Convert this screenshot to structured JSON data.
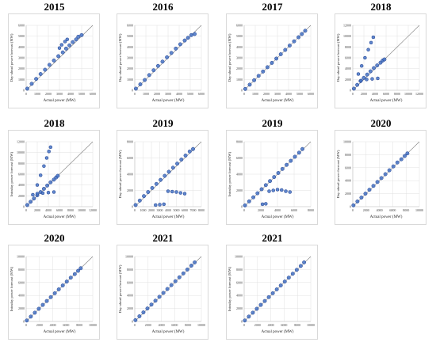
{
  "colors": {
    "point_fill": "#4472c4",
    "point_stroke": "#1f3f8f",
    "diagonal": "#7f7f7f",
    "grid": "#e0e0e0"
  },
  "chart_data": [
    {
      "type": "scatter",
      "title": "2015",
      "xlabel": "Actual power (MW)",
      "ylabel": "Day-ahead power forecast (MW)",
      "xlim": [
        0,
        6000
      ],
      "ylim": [
        0,
        6000
      ],
      "xticks": [
        "0",
        "1000",
        "2000",
        "3000",
        "4000",
        "5000",
        "6000"
      ],
      "yticks": [
        "0",
        "1000",
        "2000",
        "3000",
        "4000",
        "5000",
        "6000"
      ],
      "x": [
        100,
        500,
        900,
        1300,
        1700,
        2100,
        2500,
        2900,
        3300,
        3600,
        3900,
        4200,
        4500,
        4700,
        5000
      ],
      "y": [
        150,
        600,
        1050,
        1500,
        1900,
        2350,
        2750,
        3150,
        3500,
        3850,
        4150,
        4450,
        4700,
        4950,
        5100
      ],
      "outliers": {
        "x": [
          3000,
          3200,
          3500,
          3700
        ],
        "y": [
          3900,
          4200,
          4500,
          4700
        ]
      }
    },
    {
      "type": "scatter",
      "title": "2016",
      "xlabel": "Actual power (MW)",
      "ylabel": "Day-ahead power forecast (MW)",
      "xlim": [
        0,
        6000
      ],
      "ylim": [
        0,
        6000
      ],
      "xticks": [
        "0",
        "1000",
        "2000",
        "3000",
        "4000",
        "5000",
        "6000"
      ],
      "yticks": [
        "0",
        "1000",
        "2000",
        "3000",
        "4000",
        "5000",
        "6000"
      ],
      "x": [
        100,
        500,
        900,
        1300,
        1700,
        2100,
        2500,
        2900,
        3300,
        3700,
        4100,
        4500,
        4800,
        5100,
        5400
      ],
      "y": [
        150,
        550,
        950,
        1400,
        1850,
        2250,
        2650,
        3050,
        3450,
        3850,
        4250,
        4600,
        4850,
        5100,
        5200
      ],
      "outliers": {
        "x": [],
        "y": []
      }
    },
    {
      "type": "scatter",
      "title": "2017",
      "xlabel": "Actual power (MW)",
      "ylabel": "Day-ahead power forecast (MW)",
      "xlim": [
        0,
        6000
      ],
      "ylim": [
        0,
        6000
      ],
      "xticks": [
        "0",
        "1000",
        "2000",
        "3000",
        "4000",
        "5000",
        "6000"
      ],
      "yticks": [
        "0",
        "1000",
        "2000",
        "3000",
        "4000",
        "5000",
        "6000"
      ],
      "x": [
        100,
        500,
        900,
        1300,
        1700,
        2100,
        2500,
        2900,
        3300,
        3700,
        4100,
        4500,
        4900,
        5200,
        5500
      ],
      "y": [
        120,
        520,
        930,
        1330,
        1730,
        2130,
        2530,
        2930,
        3330,
        3730,
        4130,
        4520,
        4900,
        5200,
        5500
      ],
      "outliers": {
        "x": [],
        "y": []
      }
    },
    {
      "type": "scatter",
      "title": "2018",
      "xlabel": "Actual power (MW)",
      "ylabel": "Day-ahead power forecast (MW)",
      "xlim": [
        0,
        12000
      ],
      "ylim": [
        0,
        12000
      ],
      "xticks": [
        "0",
        "2000",
        "4000",
        "6000",
        "8000",
        "10000",
        "12000"
      ],
      "yticks": [
        "0",
        "2000",
        "4000",
        "6000",
        "8000",
        "10000",
        "12000"
      ],
      "x": [
        200,
        800,
        1400,
        2000,
        2600,
        3200,
        3800,
        4400,
        5000,
        5400,
        5700
      ],
      "y": [
        300,
        1000,
        1700,
        2300,
        2900,
        3500,
        4100,
        4600,
        5100,
        5500,
        5700
      ],
      "outliers": {
        "x": [
          1000,
          1600,
          2200,
          2800,
          3300,
          3700,
          1500,
          2500,
          3500,
          4500
        ],
        "y": [
          3000,
          4500,
          6000,
          7500,
          8800,
          9800,
          1800,
          2000,
          2100,
          2200
        ]
      }
    },
    {
      "type": "scatter",
      "title": "2018",
      "xlabel": "Actual power (MW)",
      "ylabel": "Intraday power forecast (MW)",
      "xlim": [
        0,
        12000
      ],
      "ylim": [
        0,
        12000
      ],
      "xticks": [
        "0",
        "2000",
        "4000",
        "6000",
        "8000",
        "10000",
        "12000"
      ],
      "yticks": [
        "0",
        "2000",
        "4000",
        "6000",
        "8000",
        "10000",
        "12000"
      ],
      "x": [
        200,
        800,
        1400,
        2000,
        2600,
        3200,
        3800,
        4400,
        5000,
        5400,
        5700
      ],
      "y": [
        300,
        900,
        1500,
        2100,
        2700,
        3300,
        3900,
        4500,
        5000,
        5400,
        5700
      ],
      "outliers": {
        "x": [
          2000,
          2600,
          3200,
          3700,
          4100,
          4400,
          1200,
          2000,
          3000,
          4000,
          5000
        ],
        "y": [
          4000,
          5800,
          7500,
          9000,
          10200,
          11000,
          2200,
          2400,
          2500,
          2600,
          2700
        ]
      }
    },
    {
      "type": "scatter",
      "title": "2019",
      "xlabel": "Actual power (MW)",
      "ylabel": "Day-ahead power forecast (MW)",
      "xlim": [
        0,
        8000
      ],
      "ylim": [
        0,
        8000
      ],
      "xticks": [
        "0",
        "1000",
        "2000",
        "3000",
        "4000",
        "5000",
        "6000",
        "7000",
        "8000"
      ],
      "yticks": [
        "0",
        "2000",
        "4000",
        "6000",
        "8000"
      ],
      "x": [
        100,
        600,
        1100,
        1600,
        2100,
        2600,
        3100,
        3600,
        4100,
        4600,
        5100,
        5600,
        6100,
        6600,
        7000
      ],
      "y": [
        200,
        750,
        1300,
        1800,
        2300,
        2800,
        3300,
        3800,
        4300,
        4800,
        5300,
        5800,
        6300,
        6800,
        7100
      ],
      "outliers": {
        "x": [
          4000,
          4500,
          5000,
          5500,
          6000,
          2500,
          3000,
          3500
        ],
        "y": [
          1900,
          1850,
          1800,
          1700,
          1600,
          200,
          250,
          300
        ]
      }
    },
    {
      "type": "scatter",
      "title": "2019",
      "xlabel": "Actual power (MW)",
      "ylabel": "Intraday power forecast (MW)",
      "xlim": [
        0,
        8000
      ],
      "ylim": [
        0,
        8000
      ],
      "xticks": [
        "0",
        "2000",
        "4000",
        "6000",
        "8000"
      ],
      "yticks": [
        "0",
        "2000",
        "4000",
        "6000",
        "8000"
      ],
      "x": [
        100,
        600,
        1100,
        1600,
        2100,
        2600,
        3100,
        3600,
        4100,
        4600,
        5100,
        5600,
        6100,
        6600,
        7000
      ],
      "y": [
        150,
        650,
        1150,
        1650,
        2150,
        2650,
        3150,
        3650,
        4150,
        4650,
        5150,
        5650,
        6150,
        6650,
        7100
      ],
      "outliers": {
        "x": [
          3000,
          3500,
          4000,
          4500,
          5000,
          5500,
          2200,
          2600
        ],
        "y": [
          1900,
          2000,
          2100,
          2050,
          1900,
          1800,
          300,
          350
        ]
      }
    },
    {
      "type": "scatter",
      "title": "2020",
      "xlabel": "Actual power (MW)",
      "ylabel": "Day-ahead power forecast (MW)",
      "xlim": [
        0,
        10000
      ],
      "ylim": [
        0,
        10000
      ],
      "xticks": [
        "0",
        "2000",
        "4000",
        "6000",
        "8000",
        "10000"
      ],
      "yticks": [
        "0",
        "2000",
        "4000",
        "6000",
        "8000",
        "10000"
      ],
      "x": [
        100,
        700,
        1300,
        1900,
        2500,
        3100,
        3700,
        4300,
        4900,
        5500,
        6100,
        6700,
        7300,
        7800,
        8200
      ],
      "y": [
        200,
        800,
        1400,
        2000,
        2600,
        3200,
        3800,
        4400,
        5000,
        5600,
        6200,
        6800,
        7300,
        7800,
        8200
      ],
      "outliers": {
        "x": [],
        "y": []
      }
    },
    {
      "type": "scatter",
      "title": "2020",
      "xlabel": "Actual power (MW)",
      "ylabel": "Intraday power forecast (MW)",
      "xlim": [
        0,
        10000
      ],
      "ylim": [
        0,
        10000
      ],
      "xticks": [
        "0",
        "2000",
        "4000",
        "6000",
        "8000",
        "10000"
      ],
      "yticks": [
        "0",
        "2000",
        "4000",
        "6000",
        "8000",
        "10000"
      ],
      "x": [
        100,
        700,
        1300,
        1900,
        2500,
        3100,
        3700,
        4300,
        4900,
        5500,
        6100,
        6700,
        7300,
        7800,
        8200
      ],
      "y": [
        150,
        750,
        1350,
        1950,
        2550,
        3150,
        3750,
        4350,
        4950,
        5550,
        6150,
        6750,
        7300,
        7800,
        8200
      ],
      "outliers": {
        "x": [],
        "y": []
      }
    },
    {
      "type": "scatter",
      "title": "2021",
      "xlabel": "Actual power (MW)",
      "ylabel": "Day-ahead power forecast (MW)",
      "xlim": [
        0,
        10000
      ],
      "ylim": [
        0,
        10000
      ],
      "xticks": [
        "0",
        "2000",
        "4000",
        "6000",
        "8000",
        "10000"
      ],
      "yticks": [
        "0",
        "2000",
        "4000",
        "6000",
        "8000",
        "10000"
      ],
      "x": [
        100,
        700,
        1300,
        1900,
        2500,
        3100,
        3700,
        4300,
        4900,
        5500,
        6100,
        6700,
        7300,
        7900,
        8500,
        9000
      ],
      "y": [
        200,
        800,
        1400,
        2000,
        2600,
        3200,
        3800,
        4400,
        5000,
        5600,
        6200,
        6800,
        7400,
        8000,
        8600,
        9100
      ],
      "outliers": {
        "x": [],
        "y": []
      }
    },
    {
      "type": "scatter",
      "title": "2021",
      "xlabel": "Actual power (MW)",
      "ylabel": "Intraday power forecast (MW)",
      "xlim": [
        0,
        10000
      ],
      "ylim": [
        0,
        10000
      ],
      "xticks": [
        "0",
        "2000",
        "4000",
        "6000",
        "8000",
        "10000"
      ],
      "yticks": [
        "0",
        "2000",
        "4000",
        "6000",
        "8000",
        "10000"
      ],
      "x": [
        100,
        700,
        1300,
        1900,
        2500,
        3100,
        3700,
        4300,
        4900,
        5500,
        6100,
        6700,
        7300,
        7900,
        8500,
        9000
      ],
      "y": [
        150,
        750,
        1350,
        1950,
        2550,
        3150,
        3750,
        4350,
        4950,
        5550,
        6150,
        6750,
        7350,
        7950,
        8550,
        9100
      ],
      "outliers": {
        "x": [],
        "y": []
      }
    }
  ]
}
